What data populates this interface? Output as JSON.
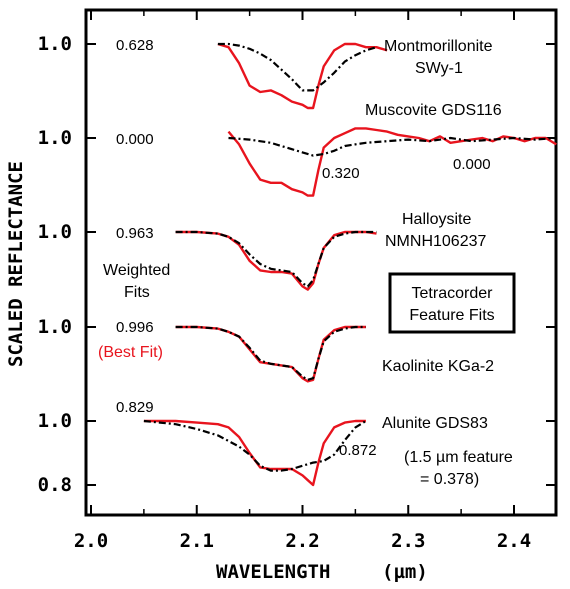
{
  "chart_data": {
    "type": "line",
    "xlabel": "WAVELENGTH",
    "xlabel_unit": "(µm)",
    "ylabel": "SCALED REFLECTANCE",
    "xlim": [
      2.0,
      2.45
    ],
    "x_ticks": [
      "2.0",
      "2.1",
      "2.2",
      "2.3",
      "2.4"
    ],
    "x_tick_values": [
      2.0,
      2.1,
      2.2,
      2.3,
      2.4
    ],
    "colors": {
      "library": "#e8141e",
      "observed": "#000000"
    },
    "boxed_title": [
      "Tetracorder",
      "Feature Fits"
    ],
    "side_label": [
      "Weighted",
      "Fits"
    ],
    "best_fit_label": "(Best Fit)",
    "series_styles": {
      "library": "solid",
      "observed": "dash-dot"
    },
    "panels": [
      {
        "mineral": [
          "Montmorillonite",
          "SWy-1"
        ],
        "fit_score": "0.628",
        "y_tick": "1.0",
        "ref_level": 1.0,
        "library": {
          "x": [
            2.12,
            2.13,
            2.14,
            2.15,
            2.16,
            2.17,
            2.18,
            2.19,
            2.2,
            2.205,
            2.21,
            2.215,
            2.22,
            2.23,
            2.24,
            2.25,
            2.26,
            2.27,
            2.28
          ],
          "y": [
            1.0,
            0.99,
            0.94,
            0.87,
            0.85,
            0.855,
            0.84,
            0.82,
            0.81,
            0.8,
            0.8,
            0.87,
            0.93,
            0.98,
            1.0,
            1.0,
            0.99,
            0.99,
            0.98
          ]
        },
        "observed": {
          "x": [
            2.12,
            2.13,
            2.14,
            2.15,
            2.16,
            2.17,
            2.18,
            2.19,
            2.2,
            2.21,
            2.22,
            2.23,
            2.24,
            2.25,
            2.26,
            2.27
          ],
          "y": [
            1.0,
            1.0,
            0.995,
            0.985,
            0.97,
            0.95,
            0.92,
            0.89,
            0.855,
            0.855,
            0.88,
            0.91,
            0.945,
            0.965,
            0.98,
            0.99
          ]
        }
      },
      {
        "mineral": [
          "Muscovite GDS116"
        ],
        "fit_score": "0.000",
        "extra_scores": [
          "0.320",
          "0.000"
        ],
        "y_tick": "1.0",
        "ref_level": 1.0,
        "library": {
          "x": [
            2.13,
            2.14,
            2.15,
            2.16,
            2.17,
            2.18,
            2.19,
            2.2,
            2.205,
            2.21,
            2.215,
            2.22,
            2.23,
            2.24,
            2.25,
            2.26,
            2.27,
            2.28,
            2.29,
            2.3,
            2.31,
            2.32,
            2.33,
            2.34,
            2.35,
            2.36,
            2.37,
            2.38,
            2.39,
            2.4,
            2.41,
            2.42,
            2.43,
            2.44
          ],
          "y": [
            1.02,
            0.98,
            0.92,
            0.87,
            0.86,
            0.86,
            0.84,
            0.83,
            0.82,
            0.82,
            0.9,
            0.97,
            1.0,
            1.015,
            1.03,
            1.03,
            1.025,
            1.02,
            1.01,
            1.005,
            1.0,
            0.99,
            1.005,
            0.985,
            0.99,
            0.995,
            1.0,
            0.99,
            1.005,
            1.0,
            0.99,
            1.0,
            1.0,
            0.98
          ]
        },
        "observed": {
          "x": [
            2.13,
            2.15,
            2.17,
            2.18,
            2.19,
            2.2,
            2.21,
            2.22,
            2.23,
            2.24,
            2.26,
            2.28,
            2.3,
            2.32,
            2.34,
            2.36,
            2.38,
            2.4,
            2.42,
            2.44
          ],
          "y": [
            1.0,
            0.995,
            0.985,
            0.975,
            0.965,
            0.955,
            0.945,
            0.95,
            0.96,
            0.975,
            0.985,
            0.99,
            0.995,
            0.99,
            1.0,
            0.99,
            0.995,
            1.0,
            0.995,
            1.0
          ]
        }
      },
      {
        "mineral": [
          "Halloysite",
          "NMNH106237"
        ],
        "fit_score": "0.963",
        "y_tick": "1.0",
        "ref_level": 1.0,
        "library": {
          "x": [
            2.08,
            2.1,
            2.12,
            2.13,
            2.14,
            2.15,
            2.16,
            2.17,
            2.18,
            2.19,
            2.2,
            2.205,
            2.21,
            2.215,
            2.22,
            2.23,
            2.24,
            2.25,
            2.26,
            2.27
          ],
          "y": [
            1.0,
            1.0,
            0.995,
            0.985,
            0.96,
            0.91,
            0.88,
            0.875,
            0.875,
            0.87,
            0.83,
            0.82,
            0.84,
            0.9,
            0.95,
            0.99,
            1.0,
            1.0,
            1.0,
            0.995
          ]
        },
        "observed": {
          "x": [
            2.08,
            2.1,
            2.12,
            2.13,
            2.14,
            2.15,
            2.16,
            2.17,
            2.18,
            2.19,
            2.2,
            2.205,
            2.21,
            2.215,
            2.22,
            2.23,
            2.24,
            2.25,
            2.26,
            2.27
          ],
          "y": [
            1.0,
            1.0,
            0.995,
            0.985,
            0.965,
            0.93,
            0.9,
            0.885,
            0.88,
            0.875,
            0.84,
            0.83,
            0.85,
            0.9,
            0.95,
            0.985,
            0.995,
            1.0,
            1.0,
            1.0
          ]
        }
      },
      {
        "mineral": [
          "Kaolinite KGa-2"
        ],
        "fit_score": "0.996",
        "y_tick": "1.0",
        "ref_level": 1.0,
        "library": {
          "x": [
            2.08,
            2.1,
            2.12,
            2.13,
            2.14,
            2.15,
            2.16,
            2.17,
            2.18,
            2.19,
            2.2,
            2.205,
            2.21,
            2.215,
            2.22,
            2.23,
            2.24,
            2.25,
            2.26
          ],
          "y": [
            1.0,
            1.0,
            0.995,
            0.985,
            0.97,
            0.93,
            0.89,
            0.885,
            0.88,
            0.875,
            0.84,
            0.83,
            0.835,
            0.9,
            0.96,
            0.99,
            1.0,
            1.0,
            1.0
          ]
        },
        "observed": {
          "x": [
            2.08,
            2.1,
            2.12,
            2.13,
            2.14,
            2.15,
            2.16,
            2.17,
            2.18,
            2.19,
            2.2,
            2.205,
            2.21,
            2.215,
            2.22,
            2.23,
            2.24,
            2.25,
            2.26
          ],
          "y": [
            1.0,
            1.0,
            0.995,
            0.985,
            0.97,
            0.935,
            0.895,
            0.885,
            0.88,
            0.875,
            0.845,
            0.835,
            0.84,
            0.9,
            0.955,
            0.985,
            0.995,
            1.0,
            1.0
          ]
        }
      },
      {
        "mineral": [
          "Alunite GDS83"
        ],
        "fit_score": "0.829",
        "extra_scores": [
          "0.872"
        ],
        "note": [
          "(1.5 µm feature",
          "= 0.378)"
        ],
        "y_ticks": [
          "1.0",
          "0.8"
        ],
        "ref_level": 1.0,
        "library": {
          "x": [
            2.05,
            2.08,
            2.1,
            2.12,
            2.13,
            2.14,
            2.15,
            2.16,
            2.17,
            2.18,
            2.19,
            2.2,
            2.205,
            2.21,
            2.215,
            2.22,
            2.23,
            2.24,
            2.25,
            2.26
          ],
          "y": [
            1.0,
            1.0,
            0.995,
            0.99,
            0.98,
            0.95,
            0.9,
            0.855,
            0.85,
            0.85,
            0.85,
            0.83,
            0.815,
            0.8,
            0.87,
            0.93,
            0.98,
            0.995,
            1.0,
            1.0
          ]
        },
        "observed": {
          "x": [
            2.05,
            2.08,
            2.1,
            2.12,
            2.14,
            2.15,
            2.16,
            2.17,
            2.18,
            2.19,
            2.2,
            2.21,
            2.22,
            2.23,
            2.24,
            2.25,
            2.26
          ],
          "y": [
            1.0,
            0.99,
            0.975,
            0.955,
            0.92,
            0.895,
            0.86,
            0.845,
            0.845,
            0.85,
            0.86,
            0.87,
            0.875,
            0.895,
            0.94,
            0.98,
            1.0
          ]
        }
      }
    ]
  }
}
